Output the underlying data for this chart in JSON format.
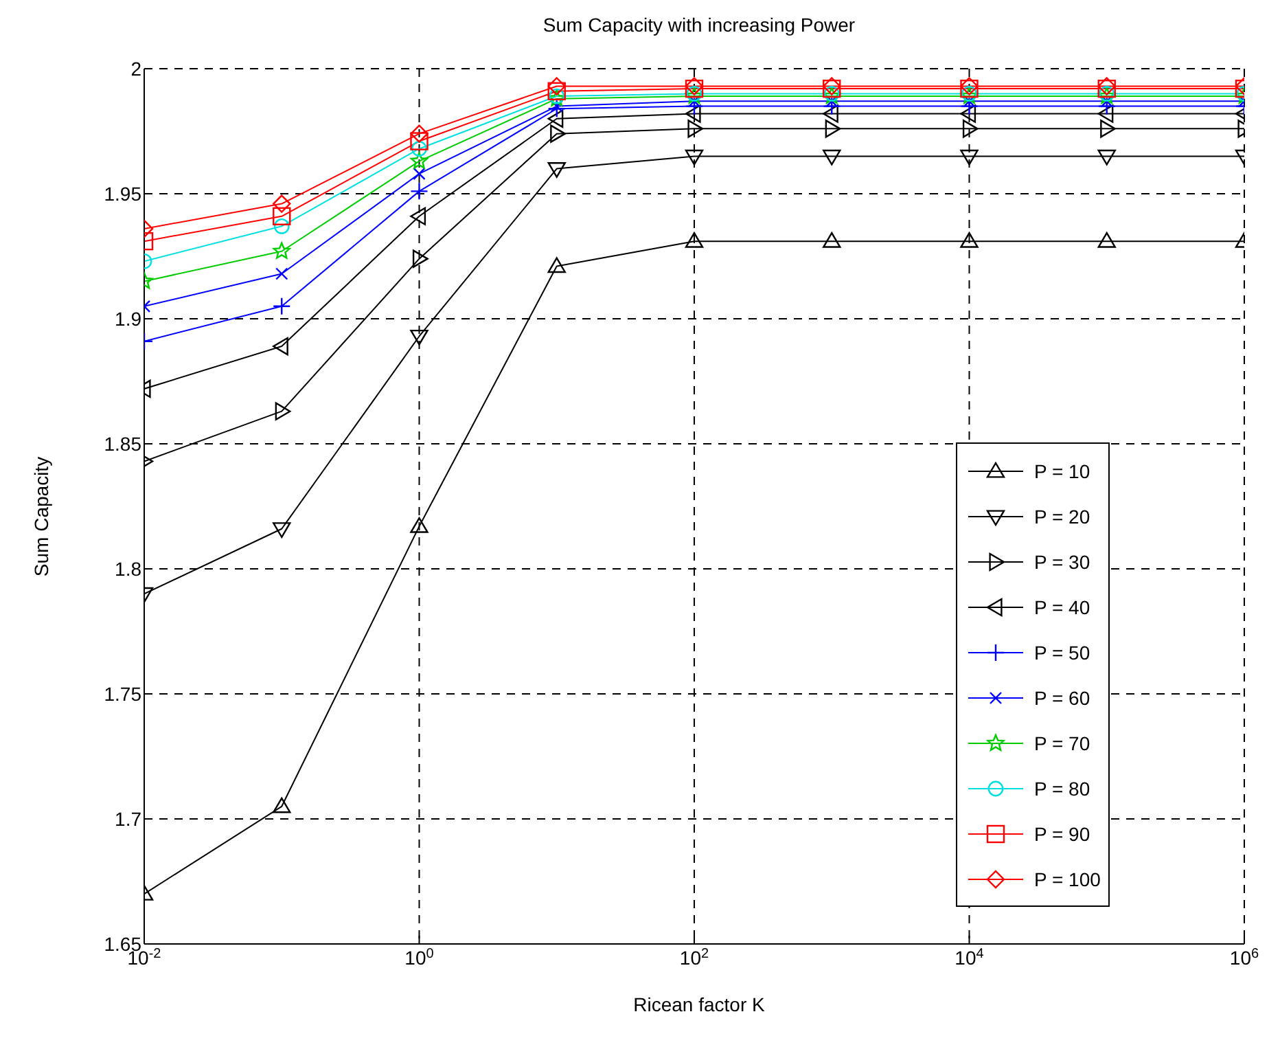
{
  "chart_data": {
    "type": "line",
    "title": "Sum Capacity with increasing Power",
    "xlabel": "Ricean factor K",
    "ylabel": "Sum Capacity",
    "x": [
      0.01,
      0.1,
      1,
      10,
      100,
      1000,
      10000,
      100000,
      1000000
    ],
    "log": "x",
    "xlim": [
      0.01,
      1000000
    ],
    "xticks": [
      {
        "value": 0.01,
        "label": "10$^{-2}$"
      },
      {
        "value": 1,
        "label": "10$^{0}$"
      },
      {
        "value": 100,
        "label": "10$^{2}$"
      },
      {
        "value": 10000,
        "label": "10$^{4}$"
      },
      {
        "value": 1000000,
        "label": "10$^{6}$"
      }
    ],
    "ylim": [
      1.65,
      2
    ],
    "yticks": [
      1.65,
      1.7,
      1.75,
      1.8,
      1.85,
      1.9,
      1.95,
      2
    ],
    "grid": true,
    "legend": "right",
    "line_style": "solid",
    "series": [
      {
        "name": "P = 10",
        "color": "#000000",
        "marker": "triangle-up",
        "values": [
          1.67,
          1.705,
          1.817,
          1.921,
          1.931,
          1.931,
          1.931,
          1.931,
          1.931
        ]
      },
      {
        "name": "P = 20",
        "color": "#000000",
        "marker": "triangle-down",
        "values": [
          1.79,
          1.816,
          1.893,
          1.96,
          1.965,
          1.965,
          1.965,
          1.965,
          1.965
        ]
      },
      {
        "name": "P = 30",
        "color": "#000000",
        "marker": "triangle-right",
        "values": [
          1.843,
          1.863,
          1.924,
          1.974,
          1.976,
          1.976,
          1.976,
          1.976,
          1.976
        ]
      },
      {
        "name": "P = 40",
        "color": "#000000",
        "marker": "triangle-left",
        "values": [
          1.872,
          1.889,
          1.941,
          1.98,
          1.982,
          1.982,
          1.982,
          1.982,
          1.982
        ]
      },
      {
        "name": "P = 50",
        "color": "#0000ff",
        "marker": "plus",
        "values": [
          1.891,
          1.905,
          1.951,
          1.984,
          1.985,
          1.985,
          1.985,
          1.985,
          1.985
        ]
      },
      {
        "name": "P = 60",
        "color": "#0000ff",
        "marker": "x",
        "values": [
          1.905,
          1.918,
          1.958,
          1.985,
          1.987,
          1.987,
          1.987,
          1.987,
          1.987
        ]
      },
      {
        "name": "P = 70",
        "color": "#00cc00",
        "marker": "star",
        "values": [
          1.915,
          1.927,
          1.963,
          1.988,
          1.989,
          1.989,
          1.989,
          1.989,
          1.989
        ]
      },
      {
        "name": "P = 80",
        "color": "#00e0e0",
        "marker": "circle",
        "values": [
          1.923,
          1.937,
          1.968,
          1.989,
          1.99,
          1.99,
          1.99,
          1.99,
          1.99
        ]
      },
      {
        "name": "P = 90",
        "color": "#ff0000",
        "marker": "square",
        "values": [
          1.931,
          1.941,
          1.971,
          1.991,
          1.992,
          1.992,
          1.992,
          1.992,
          1.992
        ]
      },
      {
        "name": "P = 100",
        "color": "#ff0000",
        "marker": "diamond",
        "values": [
          1.936,
          1.946,
          1.974,
          1.993,
          1.993,
          1.993,
          1.993,
          1.993,
          1.993
        ]
      }
    ]
  }
}
